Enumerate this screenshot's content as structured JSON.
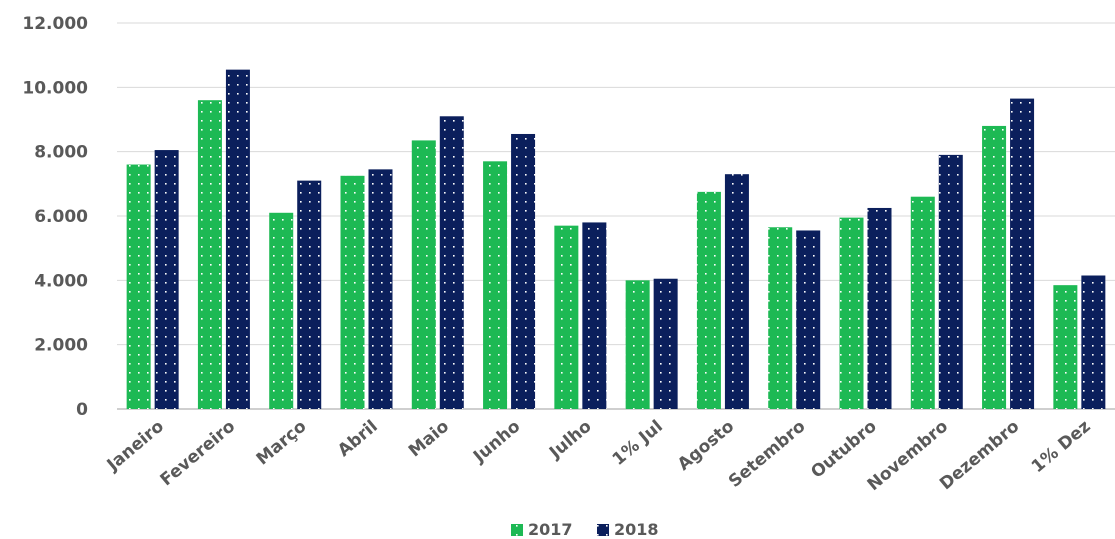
{
  "chart_data": {
    "type": "bar",
    "categories": [
      "Janeiro",
      "Fevereiro",
      "Março",
      "Abril",
      "Maio",
      "Junho",
      "Julho",
      "1% Jul",
      "Agosto",
      "Setembro",
      "Outubro",
      "Novembro",
      "Dezembro",
      "1% Dez"
    ],
    "series": [
      {
        "name": "2017",
        "color": "#1db954",
        "values": [
          7600,
          9600,
          6100,
          7250,
          8350,
          7700,
          5700,
          4000,
          6750,
          5650,
          5950,
          6600,
          8800,
          3850
        ]
      },
      {
        "name": "2018",
        "color": "#0b1f5c",
        "values": [
          8050,
          10550,
          7100,
          7450,
          9100,
          8550,
          5800,
          4050,
          7300,
          5550,
          6250,
          7900,
          9650,
          4150
        ]
      }
    ],
    "yticks": [
      "0",
      "2.000",
      "4.000",
      "6.000",
      "8.000",
      "10.000",
      "12.000"
    ],
    "ylim": [
      0,
      12000
    ],
    "grid": true,
    "legend_position": "bottom-center",
    "title": "",
    "xlabel": "",
    "ylabel": ""
  },
  "colors": {
    "grid": "#d9d9d9",
    "axis": "#bfbfbf",
    "text": "#595959",
    "dots": "#ffffff"
  }
}
